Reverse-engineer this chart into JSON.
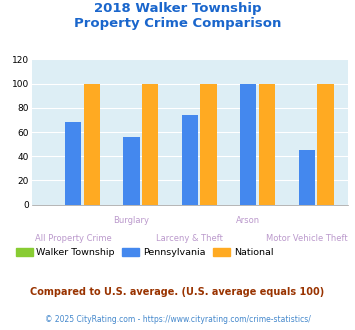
{
  "title_line1": "2018 Walker Township",
  "title_line2": "Property Crime Comparison",
  "title_color": "#1a66cc",
  "categories": [
    "All Property Crime",
    "Burglary",
    "Larceny & Theft",
    "Arson",
    "Motor Vehicle Theft"
  ],
  "walker_values": [
    0,
    0,
    0,
    0,
    0
  ],
  "pa_values": [
    68,
    56,
    74,
    100,
    45
  ],
  "national_values": [
    100,
    100,
    100,
    100,
    100
  ],
  "walker_color": "#88cc33",
  "pa_color": "#4488ee",
  "national_color": "#ffaa22",
  "ylim": [
    0,
    120
  ],
  "yticks": [
    0,
    20,
    40,
    60,
    80,
    100,
    120
  ],
  "bg_color": "#ddeef5",
  "grid_color": "#ffffff",
  "top_labels": [
    "Burglary",
    "Arson"
  ],
  "bottom_labels": [
    "All Property Crime",
    "Larceny & Theft",
    "Motor Vehicle Theft"
  ],
  "label_color": "#bb99cc",
  "legend_labels": [
    "Walker Township",
    "Pennsylvania",
    "National"
  ],
  "legend_text_color": "#333333",
  "footnote1": "Compared to U.S. average. (U.S. average equals 100)",
  "footnote2": "© 2025 CityRating.com - https://www.cityrating.com/crime-statistics/",
  "footnote1_color": "#993300",
  "footnote2_color": "#4488cc"
}
